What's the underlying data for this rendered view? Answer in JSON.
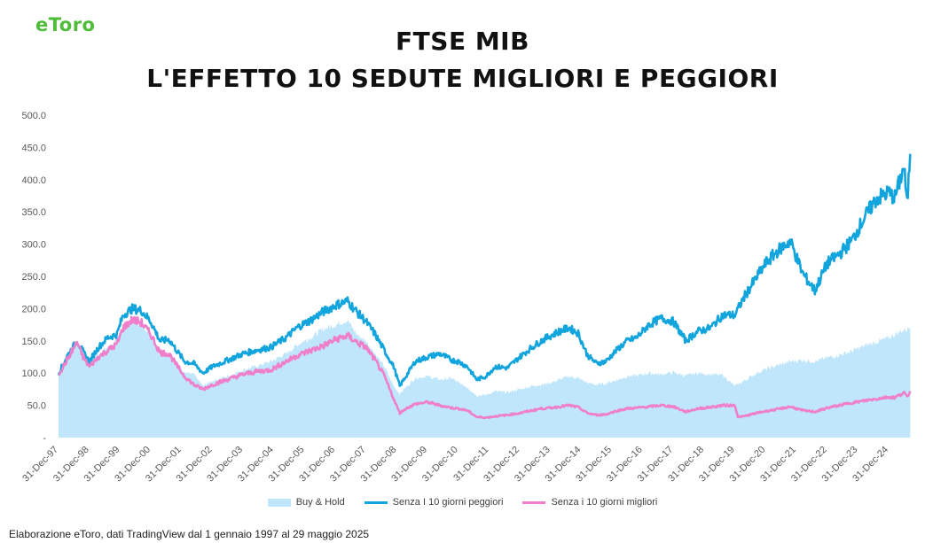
{
  "logo": "eToro",
  "title_line1": "FTSE MIB",
  "title_line2": "L'EFFETTO 10 SEDUTE MIGLIORI E PEGGIORI",
  "footer": "Elaborazione eToro, dati TradingView dal 1 gennaio 1997 al 29 maggio 2025",
  "colors": {
    "buy_hold": "#bfe6fa",
    "senza_peggiori": "#12a5dd",
    "senza_migliori": "#f07fcb",
    "logo": "#4ebd3a"
  },
  "chart_data": {
    "type": "area",
    "ylim": [
      0,
      500
    ],
    "yticks": [
      "-",
      "50.0",
      "100.0",
      "150.0",
      "200.0",
      "250.0",
      "300.0",
      "350.0",
      "400.0",
      "450.0",
      "500.0"
    ],
    "x": [
      "31-Dec-97",
      "31-Dec-98",
      "31-Dec-99",
      "31-Dec-00",
      "31-Dec-01",
      "31-Dec-02",
      "31-Dec-03",
      "31-Dec-04",
      "31-Dec-05",
      "31-Dec-06",
      "31-Dec-07",
      "31-Dec-08",
      "31-Dec-09",
      "31-Dec-10",
      "31-Dec-11",
      "31-Dec-12",
      "31-Dec-13",
      "31-Dec-14",
      "31-Dec-15",
      "31-Dec-16",
      "31-Dec-17",
      "31-Dec-18",
      "31-Dec-19",
      "31-Dec-20",
      "31-Dec-21",
      "31-Dec-22",
      "31-Dec-23",
      "31-Dec-24"
    ],
    "series": [
      {
        "name": "Buy & Hold",
        "style": "area",
        "values": [
          [
            0,
            100
          ],
          [
            0.3,
            125
          ],
          [
            0.6,
            148
          ],
          [
            0.8,
            130
          ],
          [
            1.0,
            115
          ],
          [
            1.3,
            130
          ],
          [
            1.6,
            140
          ],
          [
            1.9,
            150
          ],
          [
            2.1,
            175
          ],
          [
            2.4,
            180
          ],
          [
            2.7,
            178
          ],
          [
            3.0,
            160
          ],
          [
            3.3,
            130
          ],
          [
            3.6,
            128
          ],
          [
            3.8,
            115
          ],
          [
            4.1,
            100
          ],
          [
            4.4,
            98
          ],
          [
            4.7,
            80
          ],
          [
            5.0,
            88
          ],
          [
            5.5,
            95
          ],
          [
            6.0,
            105
          ],
          [
            6.4,
            110
          ],
          [
            6.9,
            118
          ],
          [
            7.4,
            130
          ],
          [
            7.8,
            145
          ],
          [
            8.2,
            155
          ],
          [
            8.6,
            168
          ],
          [
            9.0,
            175
          ],
          [
            9.4,
            182
          ],
          [
            9.7,
            160
          ],
          [
            10.0,
            150
          ],
          [
            10.3,
            130
          ],
          [
            10.6,
            110
          ],
          [
            10.9,
            80
          ],
          [
            11.1,
            68
          ],
          [
            11.3,
            78
          ],
          [
            11.6,
            92
          ],
          [
            12.0,
            95
          ],
          [
            12.4,
            90
          ],
          [
            12.8,
            92
          ],
          [
            13.0,
            85
          ],
          [
            13.3,
            78
          ],
          [
            13.6,
            65
          ],
          [
            13.9,
            66
          ],
          [
            14.2,
            72
          ],
          [
            14.6,
            70
          ],
          [
            15.0,
            75
          ],
          [
            15.4,
            80
          ],
          [
            15.7,
            82
          ],
          [
            16.0,
            85
          ],
          [
            16.3,
            90
          ],
          [
            16.6,
            95
          ],
          [
            16.9,
            92
          ],
          [
            17.2,
            85
          ],
          [
            17.5,
            82
          ],
          [
            17.8,
            84
          ],
          [
            18.2,
            90
          ],
          [
            18.5,
            95
          ],
          [
            18.8,
            96
          ],
          [
            19.2,
            100
          ],
          [
            19.6,
            98
          ],
          [
            20.0,
            101
          ],
          [
            20.4,
            96
          ],
          [
            20.8,
            100
          ],
          [
            21.2,
            98
          ],
          [
            21.6,
            97
          ],
          [
            22.0,
            80
          ],
          [
            22.3,
            88
          ],
          [
            22.7,
            100
          ],
          [
            23.0,
            106
          ],
          [
            23.4,
            112
          ],
          [
            23.8,
            118
          ],
          [
            24.2,
            120
          ],
          [
            24.6,
            118
          ],
          [
            25.0,
            124
          ],
          [
            25.4,
            128
          ],
          [
            25.8,
            134
          ],
          [
            26.2,
            142
          ],
          [
            26.6,
            148
          ],
          [
            27.0,
            155
          ],
          [
            27.4,
            165
          ],
          [
            27.7,
            170
          ]
        ]
      },
      {
        "name": "Senza I 10 giorni peggiori",
        "style": "line",
        "values": [
          [
            0,
            100
          ],
          [
            0.3,
            128
          ],
          [
            0.6,
            150
          ],
          [
            0.8,
            133
          ],
          [
            1.0,
            118
          ],
          [
            1.3,
            140
          ],
          [
            1.6,
            155
          ],
          [
            1.9,
            160
          ],
          [
            2.1,
            190
          ],
          [
            2.4,
            200
          ],
          [
            2.7,
            197
          ],
          [
            3.0,
            180
          ],
          [
            3.3,
            150
          ],
          [
            3.6,
            152
          ],
          [
            3.8,
            138
          ],
          [
            4.1,
            118
          ],
          [
            4.4,
            115
          ],
          [
            4.7,
            100
          ],
          [
            5.0,
            110
          ],
          [
            5.5,
            120
          ],
          [
            6.0,
            130
          ],
          [
            6.4,
            135
          ],
          [
            6.9,
            140
          ],
          [
            7.4,
            155
          ],
          [
            7.8,
            172
          ],
          [
            8.2,
            182
          ],
          [
            8.6,
            195
          ],
          [
            9.0,
            205
          ],
          [
            9.4,
            212
          ],
          [
            9.7,
            195
          ],
          [
            10.0,
            180
          ],
          [
            10.3,
            160
          ],
          [
            10.6,
            135
          ],
          [
            10.9,
            110
          ],
          [
            11.1,
            80
          ],
          [
            11.3,
            95
          ],
          [
            11.6,
            118
          ],
          [
            12.0,
            125
          ],
          [
            12.4,
            130
          ],
          [
            12.8,
            120
          ],
          [
            13.0,
            118
          ],
          [
            13.3,
            110
          ],
          [
            13.6,
            90
          ],
          [
            13.9,
            95
          ],
          [
            14.2,
            110
          ],
          [
            14.6,
            108
          ],
          [
            15.0,
            125
          ],
          [
            15.4,
            140
          ],
          [
            15.7,
            150
          ],
          [
            16.0,
            158
          ],
          [
            16.3,
            165
          ],
          [
            16.6,
            170
          ],
          [
            16.9,
            162
          ],
          [
            17.2,
            128
          ],
          [
            17.5,
            115
          ],
          [
            17.8,
            118
          ],
          [
            18.2,
            138
          ],
          [
            18.5,
            150
          ],
          [
            18.8,
            155
          ],
          [
            19.2,
            175
          ],
          [
            19.6,
            185
          ],
          [
            20.0,
            180
          ],
          [
            20.4,
            150
          ],
          [
            20.8,
            165
          ],
          [
            21.2,
            170
          ],
          [
            21.6,
            190
          ],
          [
            22.0,
            190
          ],
          [
            22.3,
            218
          ],
          [
            22.7,
            248
          ],
          [
            23.0,
            270
          ],
          [
            23.4,
            290
          ],
          [
            23.8,
            305
          ],
          [
            24.2,
            255
          ],
          [
            24.6,
            228
          ],
          [
            25.0,
            270
          ],
          [
            25.4,
            285
          ],
          [
            25.8,
            305
          ],
          [
            26.2,
            340
          ],
          [
            26.6,
            370
          ],
          [
            27.0,
            380
          ],
          [
            27.2,
            372
          ],
          [
            27.5,
            420
          ],
          [
            27.6,
            360
          ],
          [
            27.7,
            440
          ]
        ]
      },
      {
        "name": "Senza i 10 giorni migliori",
        "style": "line",
        "values": [
          [
            0,
            98
          ],
          [
            0.3,
            122
          ],
          [
            0.6,
            148
          ],
          [
            0.8,
            125
          ],
          [
            1.0,
            110
          ],
          [
            1.3,
            125
          ],
          [
            1.6,
            135
          ],
          [
            1.9,
            145
          ],
          [
            2.1,
            170
          ],
          [
            2.4,
            183
          ],
          [
            2.7,
            178
          ],
          [
            3.0,
            160
          ],
          [
            3.3,
            132
          ],
          [
            3.6,
            130
          ],
          [
            3.8,
            115
          ],
          [
            4.1,
            95
          ],
          [
            4.4,
            82
          ],
          [
            4.7,
            75
          ],
          [
            5.0,
            82
          ],
          [
            5.5,
            90
          ],
          [
            6.0,
            98
          ],
          [
            6.4,
            102
          ],
          [
            6.9,
            105
          ],
          [
            7.4,
            118
          ],
          [
            7.8,
            128
          ],
          [
            8.2,
            135
          ],
          [
            8.6,
            142
          ],
          [
            9.0,
            152
          ],
          [
            9.4,
            158
          ],
          [
            9.7,
            148
          ],
          [
            10.0,
            140
          ],
          [
            10.3,
            120
          ],
          [
            10.6,
            95
          ],
          [
            10.9,
            60
          ],
          [
            11.1,
            38
          ],
          [
            11.3,
            45
          ],
          [
            11.6,
            52
          ],
          [
            12.0,
            55
          ],
          [
            12.4,
            50
          ],
          [
            12.8,
            46
          ],
          [
            13.0,
            45
          ],
          [
            13.3,
            42
          ],
          [
            13.6,
            32
          ],
          [
            13.9,
            31
          ],
          [
            14.2,
            33
          ],
          [
            14.6,
            35
          ],
          [
            15.0,
            38
          ],
          [
            15.4,
            42
          ],
          [
            15.7,
            45
          ],
          [
            16.0,
            46
          ],
          [
            16.3,
            48
          ],
          [
            16.6,
            50
          ],
          [
            16.9,
            47
          ],
          [
            17.2,
            38
          ],
          [
            17.5,
            35
          ],
          [
            17.8,
            36
          ],
          [
            18.2,
            42
          ],
          [
            18.5,
            45
          ],
          [
            18.8,
            46
          ],
          [
            19.2,
            48
          ],
          [
            19.6,
            50
          ],
          [
            20.0,
            48
          ],
          [
            20.4,
            40
          ],
          [
            20.8,
            45
          ],
          [
            21.2,
            47
          ],
          [
            21.6,
            50
          ],
          [
            22.0,
            50
          ],
          [
            22.1,
            32
          ],
          [
            22.3,
            33
          ],
          [
            22.7,
            38
          ],
          [
            23.0,
            41
          ],
          [
            23.4,
            44
          ],
          [
            23.8,
            48
          ],
          [
            24.2,
            42
          ],
          [
            24.6,
            40
          ],
          [
            25.0,
            46
          ],
          [
            25.4,
            50
          ],
          [
            25.8,
            54
          ],
          [
            26.2,
            57
          ],
          [
            26.6,
            60
          ],
          [
            27.0,
            63
          ],
          [
            27.2,
            62
          ],
          [
            27.5,
            70
          ],
          [
            27.6,
            62
          ],
          [
            27.7,
            72
          ]
        ]
      }
    ]
  }
}
